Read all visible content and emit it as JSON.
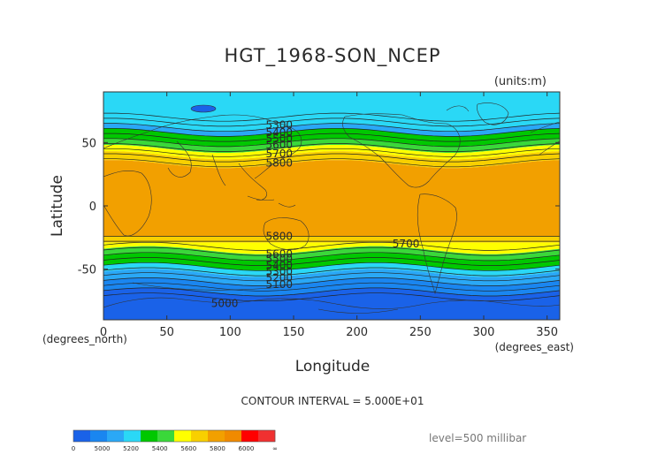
{
  "chart_data": {
    "type": "contour",
    "title": "HGT_1968-SON_NCEP",
    "units": "(units:m)",
    "xlabel": "Longitude",
    "ylabel": "Latitude",
    "x_unit_label": "(degrees_east)",
    "y_unit_label": "(degrees_north)",
    "xlim": [
      0,
      360
    ],
    "ylim": [
      -90,
      90
    ],
    "x_ticks": [
      0,
      50,
      100,
      150,
      200,
      250,
      300,
      350
    ],
    "y_ticks": [
      50,
      0,
      -50
    ],
    "contour_interval_text": "CONTOUR INTERVAL = 5.000E+01",
    "level_text": "level=500 millibar",
    "contour_labels": [
      {
        "text": "5300",
        "lon": 128,
        "lat": 64
      },
      {
        "text": "5400",
        "lon": 128,
        "lat": 58
      },
      {
        "text": "5500",
        "lon": 128,
        "lat": 53
      },
      {
        "text": "5600",
        "lon": 128,
        "lat": 48
      },
      {
        "text": "5700",
        "lon": 128,
        "lat": 41
      },
      {
        "text": "5800",
        "lon": 128,
        "lat": 34
      },
      {
        "text": "5800",
        "lon": 128,
        "lat": -24
      },
      {
        "text": "5700",
        "lon": 228,
        "lat": -30
      },
      {
        "text": "5600",
        "lon": 128,
        "lat": -38
      },
      {
        "text": "5500",
        "lon": 128,
        "lat": -42
      },
      {
        "text": "5400",
        "lon": 128,
        "lat": -47
      },
      {
        "text": "5300",
        "lon": 128,
        "lat": -52
      },
      {
        "text": "5200",
        "lon": 128,
        "lat": -57
      },
      {
        "text": "5100",
        "lon": 128,
        "lat": -62
      },
      {
        "text": "5000",
        "lon": 85,
        "lat": -77
      }
    ],
    "colorbar": {
      "colors": [
        "#1a62e8",
        "#1a86f0",
        "#2aa8f6",
        "#2ad8f6",
        "#00c800",
        "#3ad83a",
        "#ffff00",
        "#f8d000",
        "#f2a000",
        "#f08a00",
        "#ff0000",
        "#f03030"
      ],
      "tick_labels": [
        "0",
        "5000",
        "5200",
        "5400",
        "5600",
        "5800",
        "6000",
        "∞"
      ]
    }
  }
}
